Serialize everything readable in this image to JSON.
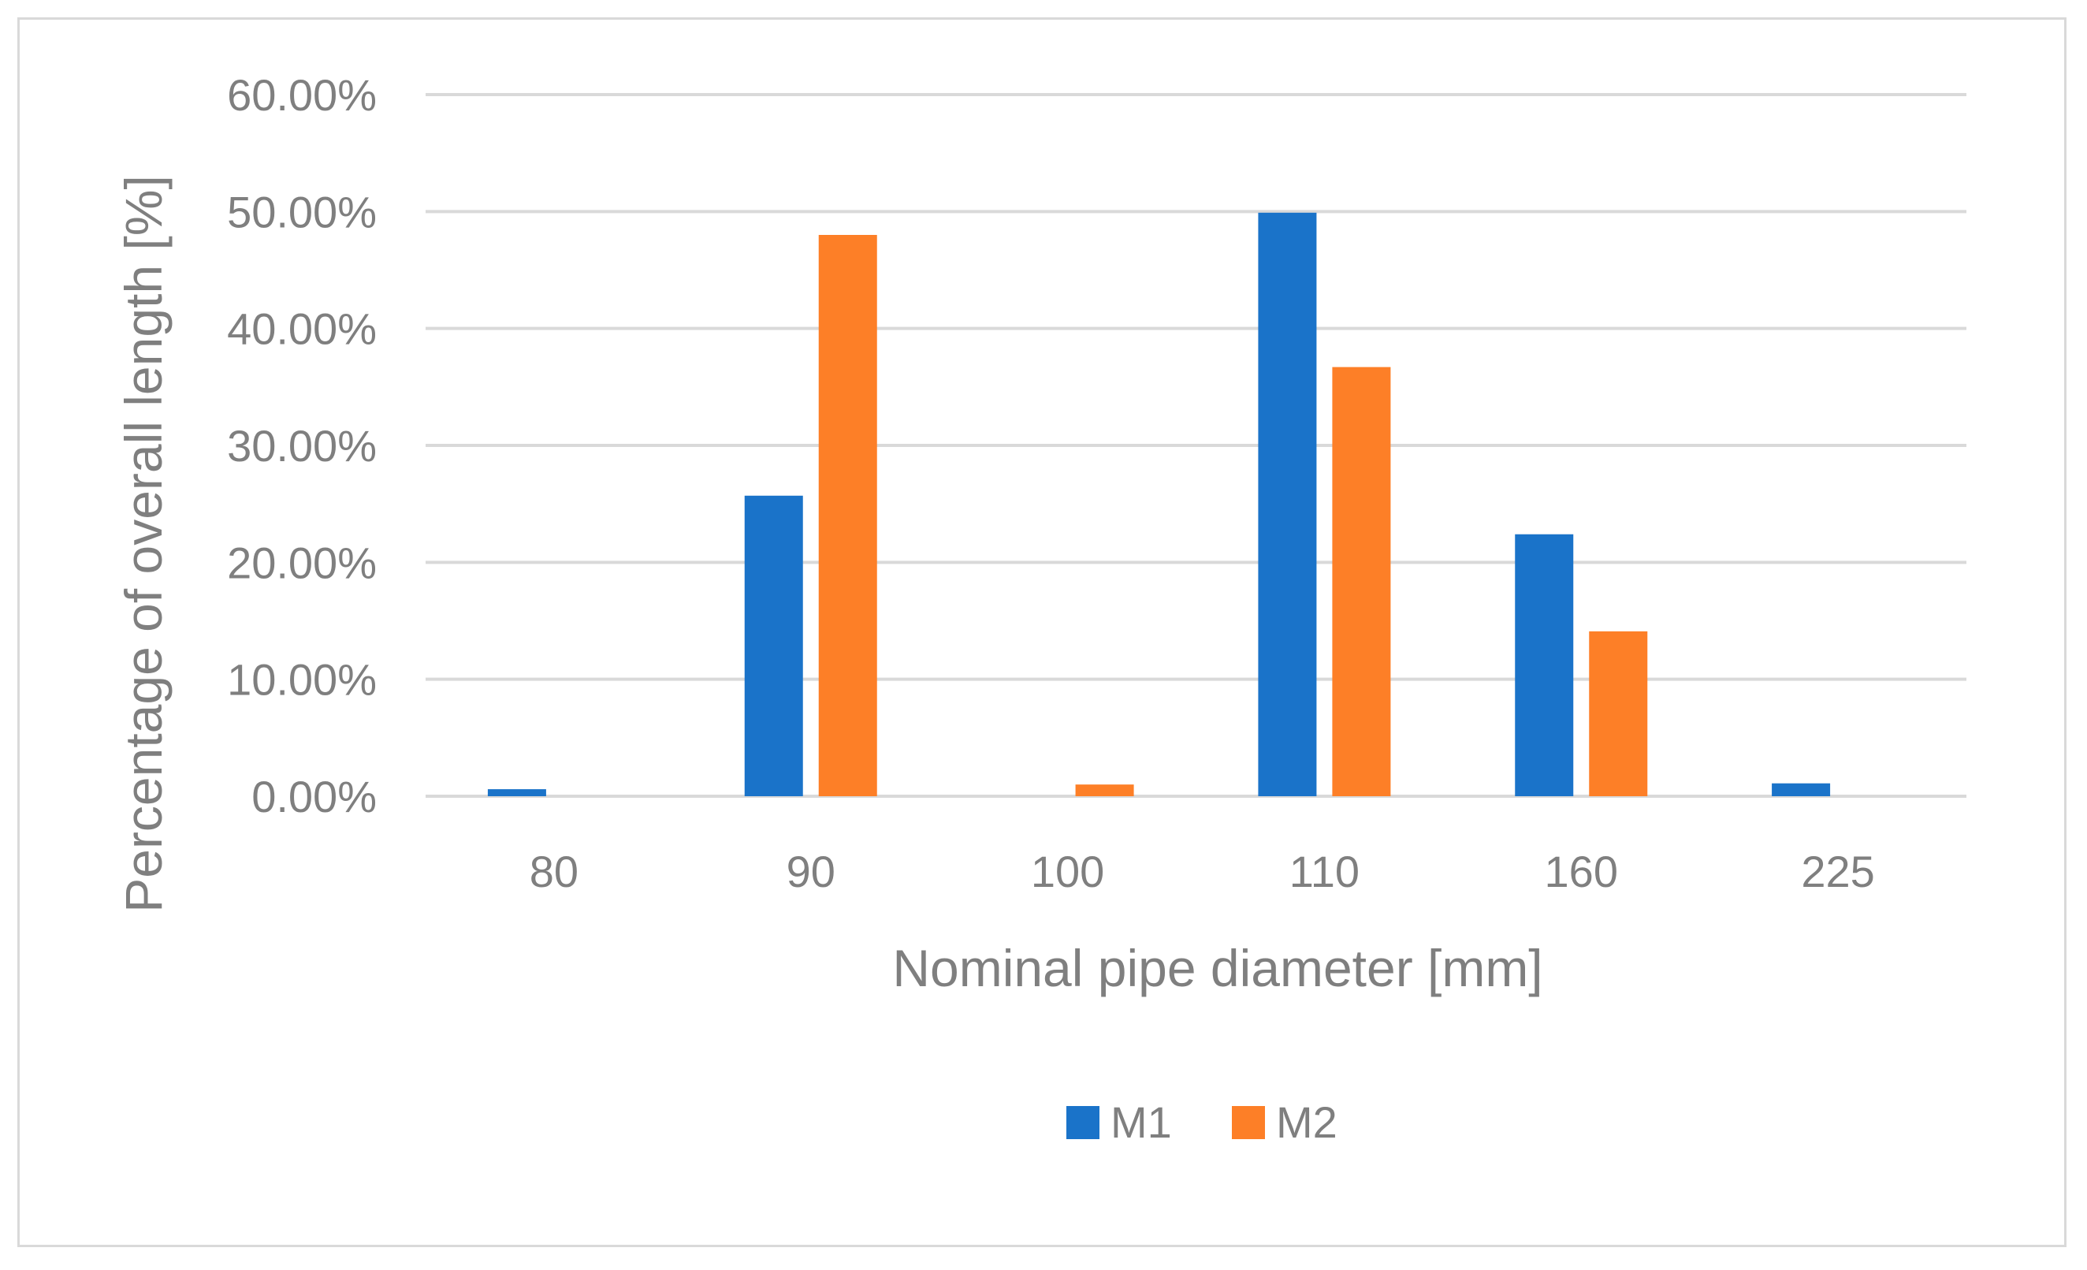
{
  "chart_data": {
    "type": "bar",
    "categories": [
      "80",
      "90",
      "100",
      "110",
      "160",
      "225"
    ],
    "series": [
      {
        "name": "M1",
        "color": "#1a73c9",
        "values": [
          0.6,
          25.7,
          0,
          49.9,
          22.4,
          1.1
        ]
      },
      {
        "name": "M2",
        "color": "#fd7f27",
        "values": [
          0,
          48.0,
          1.0,
          36.7,
          14.1,
          0
        ]
      }
    ],
    "y_ticks": [
      "0.00%",
      "10.00%",
      "20.00%",
      "30.00%",
      "40.00%",
      "50.00%",
      "60.00%"
    ],
    "ylim": [
      0,
      60
    ],
    "xlabel": "Nominal pipe diameter [mm]",
    "ylabel": "Percentage of overall length [%]",
    "grid": true,
    "legend_position": "bottom-center",
    "gridline_color": "#d9d9d9",
    "text_color": "#7f7f7f"
  }
}
